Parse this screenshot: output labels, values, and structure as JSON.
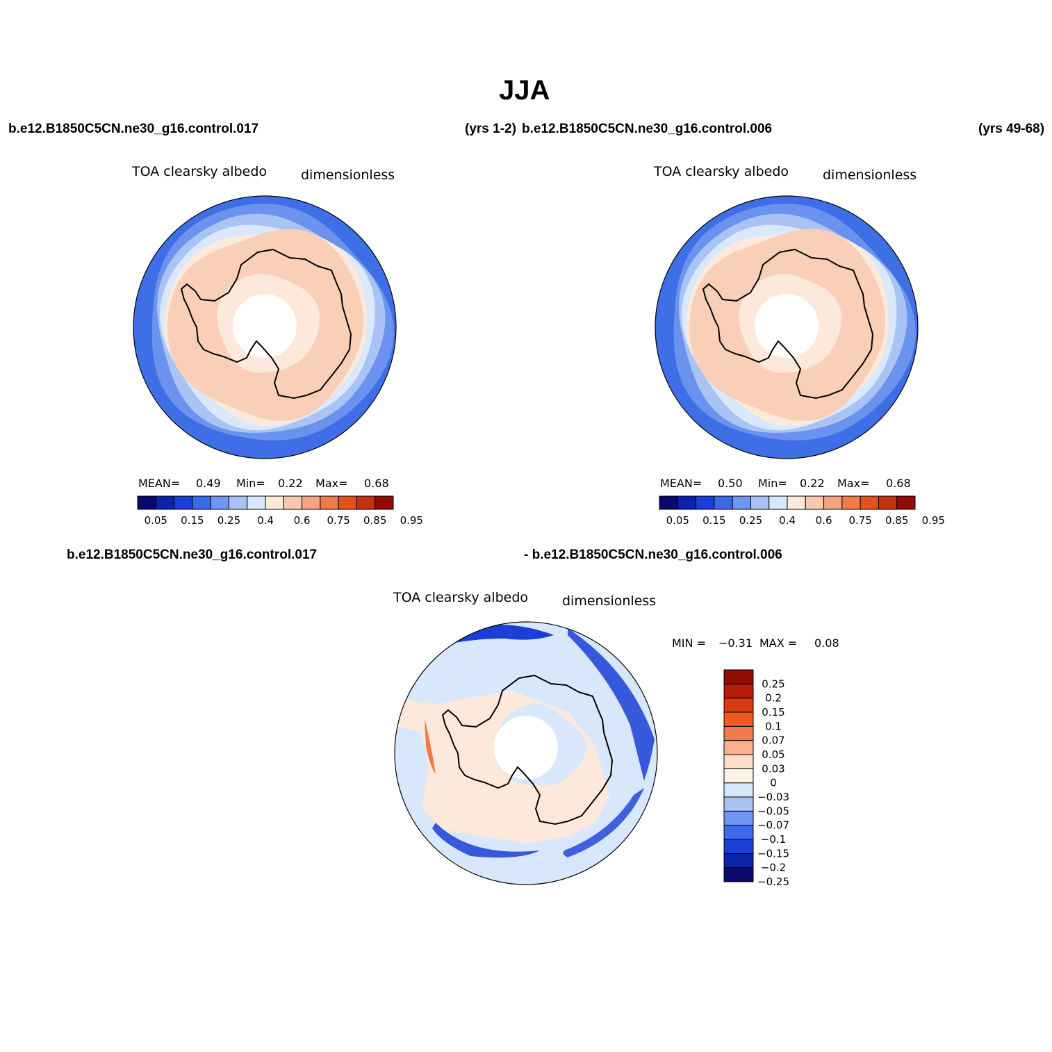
{
  "figure": {
    "title": "JJA",
    "case_left": "b.e12.B1850C5CN.ne30_g16.control.017",
    "years_left": "(yrs 1-2)",
    "case_right": "b.e12.B1850C5CN.ne30_g16.control.006",
    "years_right": "(yrs 49-68)"
  },
  "panels": [
    {
      "variable": "TOA clearsky albedo",
      "units": "dimensionless",
      "mean_label": "MEAN=",
      "mean": "0.49",
      "min_label": "Min=",
      "min": "0.22",
      "max_label": "Max=",
      "max": "0.68"
    },
    {
      "variable": "TOA clearsky albedo",
      "units": "dimensionless",
      "mean_label": "MEAN=",
      "mean": "0.50",
      "min_label": "Min=",
      "min": "0.22",
      "max_label": "Max=",
      "max": "0.68"
    }
  ],
  "diff_panel": {
    "case_a": "b.e12.B1850C5CN.ne30_g16.control.017",
    "case_b": "- b.e12.B1850C5CN.ne30_g16.control.006",
    "variable": "TOA clearsky albedo",
    "units": "dimensionless",
    "min_label": "MIN =",
    "min": "−0.31",
    "max_label": "MAX =",
    "max": "0.08"
  },
  "colorbar_abs": {
    "colors": [
      "#0a0a6e",
      "#0a24a8",
      "#1a3fd6",
      "#3a6ae8",
      "#6f96f0",
      "#a9c3f5",
      "#d8e7fb",
      "#fde9dc",
      "#f8c8b0",
      "#f4a483",
      "#f07a4a",
      "#e5501e",
      "#c53210",
      "#8f0d05"
    ],
    "labels": [
      "0.05",
      "0.15",
      "0.25",
      "0.4",
      "0.6",
      "0.75",
      "0.85",
      "0.95"
    ]
  },
  "colorbar_diff": {
    "colors": [
      "#0a0a6e",
      "#0a24a8",
      "#1a3fd6",
      "#3a6ae8",
      "#6f96f0",
      "#a9c3f5",
      "#d8e7fb",
      "#fff2e6",
      "#fde0cc",
      "#f8b08e",
      "#f07a4a",
      "#f05a20",
      "#d93a10",
      "#b51c0a",
      "#8f0d05"
    ],
    "labels": [
      "0.25",
      "0.2",
      "0.15",
      "0.1",
      "0.07",
      "0.05",
      "0.03",
      "0",
      "−0.03",
      "−0.05",
      "−0.07",
      "−0.1",
      "−0.15",
      "−0.2",
      "−0.25"
    ]
  },
  "map_fields": {
    "abs_rings": [
      "#3f6fe6",
      "#6a92ee",
      "#a9c3f5",
      "#d9e8fb",
      "#fde9dc",
      "#f9cfb8"
    ],
    "polar_hole": "#ffffff",
    "inner_cap": "#fde9dc",
    "coast_color": "#000000",
    "diff_background": "#d8e7fb",
    "diff_land": "#fde9dc",
    "diff_strong_neg": "#1a3fd6",
    "diff_pos": "#f07a4a"
  }
}
